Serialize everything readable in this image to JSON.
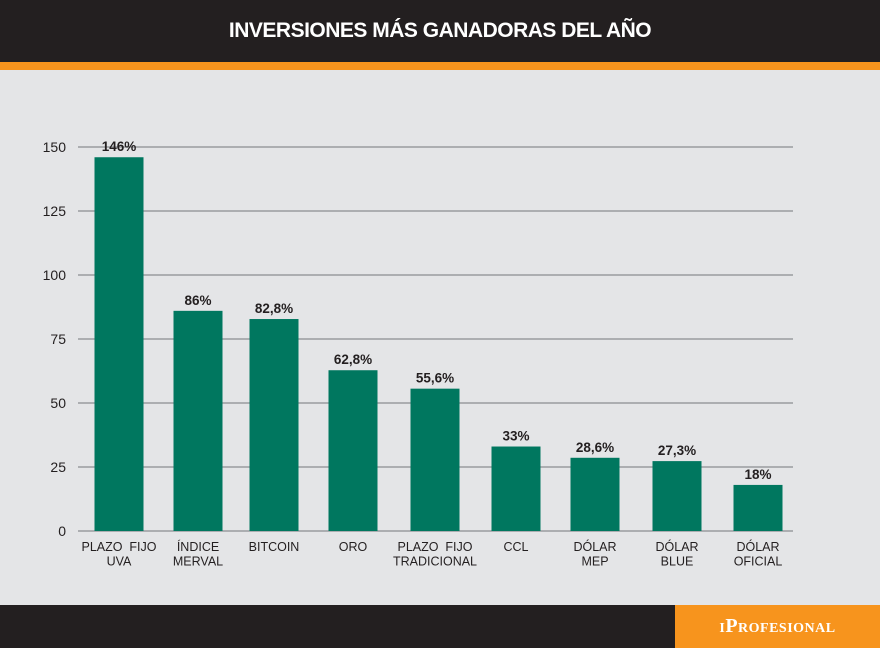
{
  "header": {
    "title": "INVERSIONES MÁS GANADORAS DEL AÑO"
  },
  "footer": {
    "logo_text": "iProfesional"
  },
  "colors": {
    "bar": "#00775f",
    "header_bg": "#231f20",
    "accent": "#f7941d",
    "plot_bg": "#e4e5e7",
    "grid": "#9a9c9f"
  },
  "chart_data": {
    "type": "bar",
    "categories": [
      [
        "PLAZO  FIJO",
        "UVA"
      ],
      [
        "ÍNDICE",
        "MERVAL"
      ],
      [
        "BITCOIN"
      ],
      [
        "ORO"
      ],
      [
        "PLAZO  FIJO",
        "TRADICIONAL"
      ],
      [
        "CCL"
      ],
      [
        "DÓLAR",
        "MEP"
      ],
      [
        "DÓLAR",
        "BLUE"
      ],
      [
        "DÓLAR",
        "OFICIAL"
      ]
    ],
    "values": [
      146,
      86,
      82.8,
      62.8,
      55.6,
      33,
      28.6,
      27.3,
      18
    ],
    "data_labels": [
      "146%",
      "86%",
      "82,8%",
      "62,8%",
      "55,6%",
      "33%",
      "28,6%",
      "27,3%",
      "18%"
    ],
    "yticks": [
      0,
      25,
      50,
      75,
      100,
      125,
      150
    ],
    "ylim": [
      0,
      150
    ],
    "grid": true,
    "title": "INVERSIONES MÁS GANADORAS DEL AÑO",
    "xlabel": "",
    "ylabel": ""
  }
}
